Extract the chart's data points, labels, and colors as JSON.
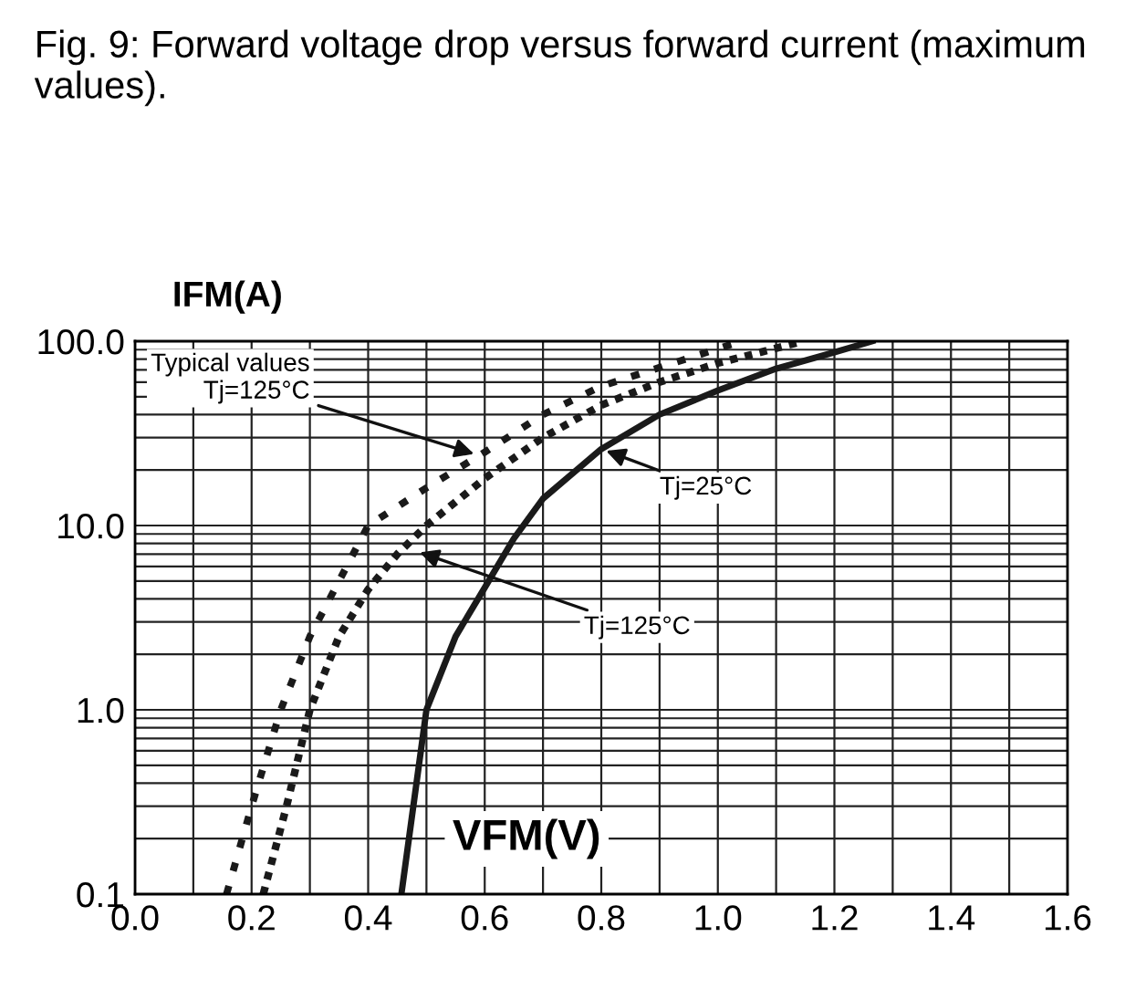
{
  "chart_data": {
    "type": "line",
    "title": "Fig. 9: Forward voltage drop versus forward current (maximum values).",
    "xlabel": "VFM(V)",
    "ylabel": "IFM(A)",
    "log": "y",
    "grid": true,
    "legend": false,
    "xlim": [
      0,
      1.6
    ],
    "ylim": [
      0.1,
      100
    ],
    "xticks": [
      {
        "value": 0,
        "label": "0.0"
      },
      {
        "value": 0.1,
        "label": null
      },
      {
        "value": 0.2,
        "label": "0.2"
      },
      {
        "value": 0.3,
        "label": null
      },
      {
        "value": 0.4,
        "label": "0.4"
      },
      {
        "value": 0.5,
        "label": null
      },
      {
        "value": 0.6,
        "label": "0.6"
      },
      {
        "value": 0.7,
        "label": null
      },
      {
        "value": 0.8,
        "label": "0.8"
      },
      {
        "value": 0.9,
        "label": null
      },
      {
        "value": 1.0,
        "label": "1.0"
      },
      {
        "value": 1.1,
        "label": null
      },
      {
        "value": 1.2,
        "label": "1.2"
      },
      {
        "value": 1.3,
        "label": null
      },
      {
        "value": 1.4,
        "label": "1.4"
      },
      {
        "value": 1.5,
        "label": null
      },
      {
        "value": 1.6,
        "label": "1.6"
      }
    ],
    "yticks": [
      {
        "value": 0.1,
        "label": "0.1"
      },
      {
        "value": 0.2,
        "label": null
      },
      {
        "value": 0.3,
        "label": null
      },
      {
        "value": 0.4,
        "label": null
      },
      {
        "value": 0.5,
        "label": null
      },
      {
        "value": 0.6,
        "label": null
      },
      {
        "value": 0.7,
        "label": null
      },
      {
        "value": 0.8,
        "label": null
      },
      {
        "value": 0.9,
        "label": null
      },
      {
        "value": 1,
        "label": "1.0"
      },
      {
        "value": 2,
        "label": null
      },
      {
        "value": 3,
        "label": null
      },
      {
        "value": 4,
        "label": null
      },
      {
        "value": 5,
        "label": null
      },
      {
        "value": 6,
        "label": null
      },
      {
        "value": 7,
        "label": null
      },
      {
        "value": 8,
        "label": null
      },
      {
        "value": 9,
        "label": null
      },
      {
        "value": 10,
        "label": "10.0"
      },
      {
        "value": 20,
        "label": null
      },
      {
        "value": 30,
        "label": null
      },
      {
        "value": 40,
        "label": null
      },
      {
        "value": 50,
        "label": null
      },
      {
        "value": 60,
        "label": null
      },
      {
        "value": 70,
        "label": null
      },
      {
        "value": 80,
        "label": null
      },
      {
        "value": 90,
        "label": null
      },
      {
        "value": 100,
        "label": "100.0"
      }
    ],
    "series": [
      {
        "color": "#1a1a1a",
        "line_style": "solid",
        "x": [
          0.457,
          0.5,
          0.55,
          0.6,
          0.65,
          0.7,
          0.8,
          0.9,
          1.0,
          1.1,
          1.2,
          1.265
        ],
        "values": [
          0.1,
          1,
          2.5,
          4.6,
          8.5,
          14,
          26,
          40,
          54,
          71,
          87,
          100
        ]
      },
      {
        "color": "#1a1a1a",
        "line_style": "dotted",
        "x": [
          0.22,
          0.26,
          0.3,
          0.35,
          0.4,
          0.45,
          0.5,
          0.6,
          0.7,
          0.8,
          0.9,
          1.0,
          1.147
        ],
        "values": [
          0.1,
          0.3,
          1,
          2.5,
          4.5,
          7,
          10,
          18,
          30,
          45,
          60,
          76,
          100
        ]
      },
      {
        "color": "#1a1a1a",
        "line_style": "dotted",
        "x": [
          0.157,
          0.2,
          0.25,
          0.3,
          0.35,
          0.4,
          0.5,
          0.6,
          0.7,
          0.8,
          0.9,
          1.04
        ],
        "values": [
          0.1,
          0.3,
          1,
          2.5,
          5,
          10,
          16,
          25,
          40,
          57,
          72,
          100
        ]
      }
    ],
    "annotations": [
      {
        "text": "Typical values\nTj=125°C",
        "x": 0.59,
        "y": 24
      },
      {
        "text": "Tj=25°C",
        "x": 0.8,
        "y": 26
      },
      {
        "text": "Tj=125°C",
        "x": 0.48,
        "y": 7.3
      }
    ]
  }
}
